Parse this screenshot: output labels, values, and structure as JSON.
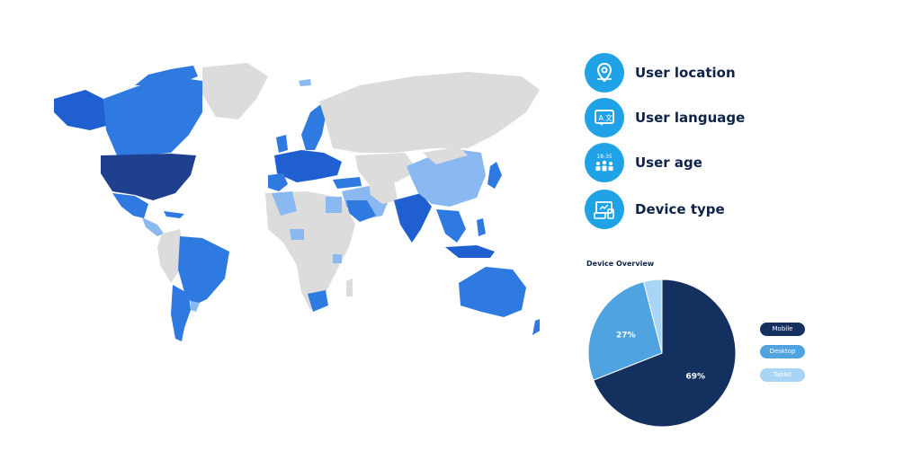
{
  "features": [
    {
      "label": "User location",
      "icon": "map-pin-icon"
    },
    {
      "label": "User language",
      "icon": "translate-icon"
    },
    {
      "label": "User age",
      "icon": "age-group-icon",
      "icon_text": "18-35"
    },
    {
      "label": "Device type",
      "icon": "devices-icon"
    }
  ],
  "map": {
    "colors": {
      "land": "#dcdcdc",
      "darkest": "#1f3f8f",
      "dark": "#1f5fcf",
      "medium": "#2f7ae0",
      "light": "#8ab8f0"
    }
  },
  "chart_data": {
    "type": "pie",
    "title": "Device Overview",
    "categories": [
      "Mobile",
      "Desktop",
      "Tablet"
    ],
    "values": [
      69,
      27,
      4
    ],
    "data_labels": [
      "69%",
      "27%",
      ""
    ],
    "colors": [
      "#14305e",
      "#4ea3e0",
      "#a8d4f6"
    ],
    "legend_position": "right"
  }
}
